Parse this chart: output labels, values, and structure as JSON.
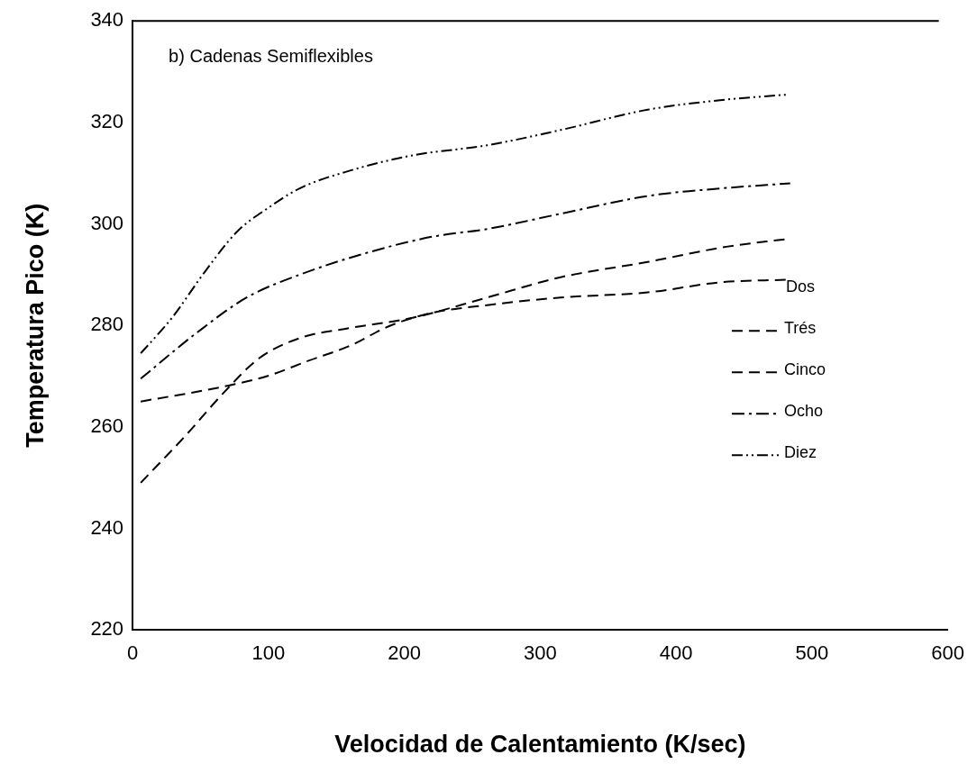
{
  "chart_data": {
    "type": "line",
    "xlabel": "Velocidad de Calentamiento (K/sec)",
    "ylabel": "Temperatura Pico (K)",
    "annotations": [
      "b) Cadenas Semiflexibles"
    ],
    "legend_title": "Dos",
    "legend": "bottom right",
    "grid": false,
    "marker": "none",
    "xlim": [
      0,
      600
    ],
    "xticks": [
      0,
      100,
      200,
      300,
      400,
      500,
      600
    ],
    "ylim": [
      220,
      340
    ],
    "yticks": [
      220,
      240,
      260,
      280,
      300,
      320,
      340
    ],
    "series": [
      {
        "name": "Trés",
        "color": "#000000",
        "line_style": "dashed",
        "x": [
          6,
          68,
          99,
          129,
          160,
          190,
          221,
          261,
          315,
          379,
          433,
          481
        ],
        "values": [
          265,
          268,
          270,
          273,
          276,
          280,
          282.5,
          284,
          285.5,
          286.5,
          288.5,
          289
        ]
      },
      {
        "name": "Cinco",
        "color": "#000000",
        "line_style": "dashed",
        "x": [
          6,
          38,
          68,
          93,
          123,
          160,
          206,
          261,
          315,
          379,
          437,
          481
        ],
        "values": [
          249,
          258,
          267,
          273.5,
          277.5,
          279.5,
          281.5,
          285.5,
          289.5,
          292.5,
          295.5,
          297
        ]
      },
      {
        "name": "Ocho",
        "color": "#000000",
        "line_style": "dashdot",
        "x": [
          6,
          47,
          84,
          123,
          175,
          221,
          261,
          315,
          379,
          433,
          484
        ],
        "values": [
          269.5,
          278.5,
          285.5,
          290,
          294.5,
          297.5,
          299,
          302,
          305.5,
          307,
          308
        ]
      },
      {
        "name": "Diez",
        "color": "#000000",
        "line_style": "dashdotdot",
        "x": [
          6,
          29,
          53,
          77,
          99,
          123,
          160,
          206,
          261,
          315,
          379,
          437,
          483
        ],
        "values": [
          274.5,
          281.5,
          290.5,
          298.5,
          303,
          307,
          310.5,
          313.5,
          315.5,
          318.5,
          322.5,
          324.5,
          325.5
        ]
      }
    ]
  }
}
